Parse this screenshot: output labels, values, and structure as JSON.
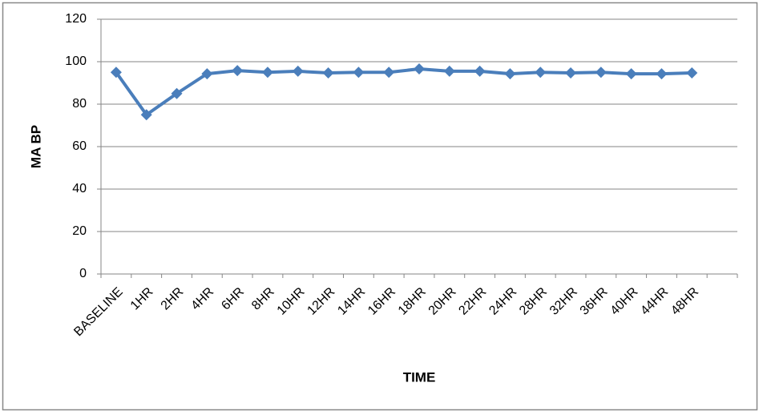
{
  "chart_data": {
    "type": "line",
    "xlabel": "TIME",
    "ylabel": "MA BP",
    "categories": [
      "BASELINE",
      "1HR",
      "2HR",
      "4HR",
      "6HR",
      "8HR",
      "10HR",
      "12HR",
      "14HR",
      "16HR",
      "18HR",
      "20HR",
      "22HR",
      "24HR",
      "28HR",
      "32HR",
      "36HR",
      "40HR",
      "44HR",
      "48HR",
      null
    ],
    "series": [
      {
        "color": "#4a7ebb",
        "values": [
          95,
          75,
          85,
          94.3,
          95.8,
          95,
          95.5,
          94.7,
          95,
          95,
          96.6,
          95.5,
          95.5,
          94.3,
          95,
          94.7,
          95,
          94.3,
          94.3,
          94.7,
          null
        ]
      }
    ],
    "ylim": [
      0,
      120
    ],
    "yticks": [
      0,
      20,
      40,
      60,
      80,
      100,
      120
    ],
    "grid": true
  }
}
